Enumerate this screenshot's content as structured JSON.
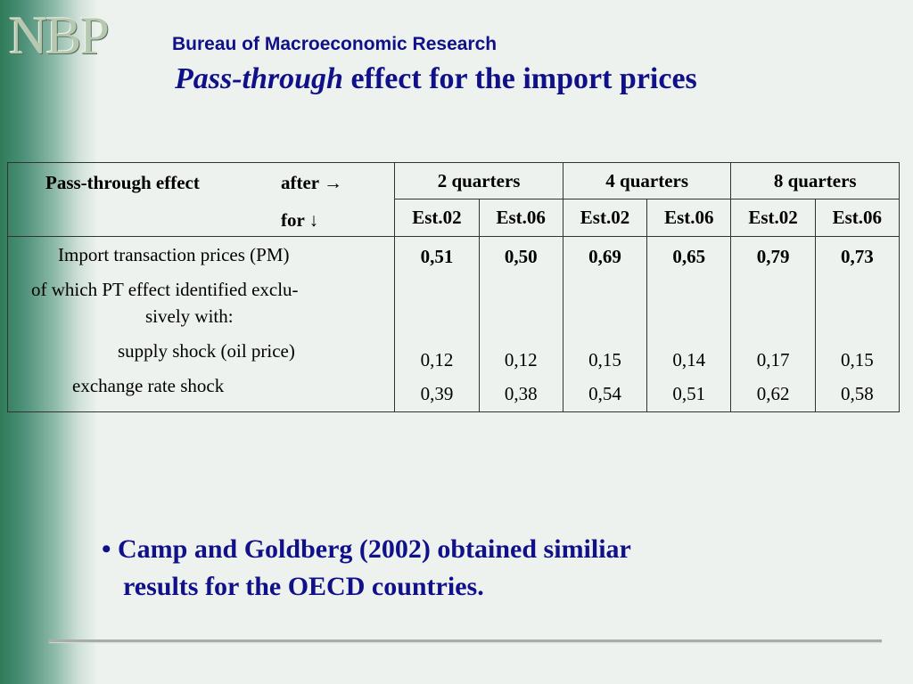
{
  "header": {
    "logo_text": "NBP",
    "organization": "Bureau of Macroeconomic Research",
    "title_italic": "Pass-through",
    "title_rest": " effect for the import prices"
  },
  "table": {
    "header_label": "Pass-through effect",
    "after_label": "after →",
    "for_label": "for ↓",
    "quarters": [
      "2 quarters",
      "4 quarters",
      "8 quarters"
    ],
    "estimates": [
      "Est.02",
      "Est.06",
      "Est.02",
      "Est.06",
      "Est.02",
      "Est.06"
    ],
    "rows": {
      "import_label": "Import transaction prices (PM)",
      "which_label_1": "of  which  PT effect identified exclu-",
      "which_label_2": "sively with:",
      "supply_label": "supply shock (oil price)",
      "exchange_label": "exchange rate shock"
    },
    "values": {
      "import": [
        "0,51",
        "0,50",
        "0,69",
        "0,65",
        "0,79",
        "0,73"
      ],
      "supply": [
        "0,12",
        "0,12",
        "0,15",
        "0,14",
        "0,17",
        "0,15"
      ],
      "exchange": [
        "0,39",
        "0,38",
        "0,54",
        "0,51",
        "0,62",
        "0,58"
      ]
    }
  },
  "bullet": {
    "line1": "• Camp and Goldberg (2002) obtained similiar",
    "line2": "results for the OECD countries."
  }
}
